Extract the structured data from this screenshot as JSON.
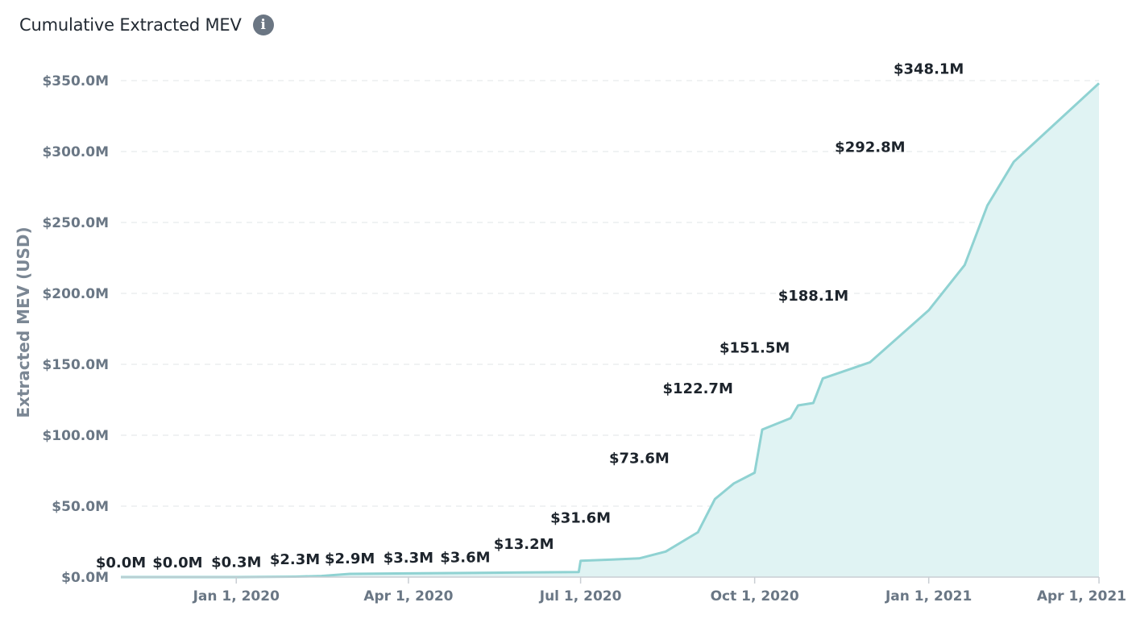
{
  "header": {
    "title": "Cumulative Extracted MEV",
    "info_icon": "info-icon"
  },
  "chart_data": {
    "type": "area",
    "title": "Cumulative Extracted MEV",
    "ylabel": "Extracted MEV (USD)",
    "xlabel": "",
    "ylim": [
      0,
      350
    ],
    "y_unit": "millions USD",
    "yticks": [
      0,
      50,
      100,
      150,
      200,
      250,
      300,
      350
    ],
    "ytick_labels": [
      "$0.0M",
      "$50.0M",
      "$100.0M",
      "$150.0M",
      "$200.0M",
      "$250.0M",
      "$300.0M",
      "$350.0M"
    ],
    "xlim": [
      "2019-11-01",
      "2021-04-01"
    ],
    "xticks": [
      "2020-01-01",
      "2020-04-01",
      "2020-07-01",
      "2020-10-01",
      "2021-01-01",
      "2021-04-01"
    ],
    "xtick_labels": [
      "Jan 1, 2020",
      "Apr 1, 2020",
      "Jul 1, 2020",
      "Oct 1, 2020",
      "Jan 1, 2021",
      "Apr 1, 2021"
    ],
    "grid": true,
    "series": [
      {
        "color": "#8fd2d2",
        "fill": "#e0f3f3",
        "points": [
          {
            "x": "2019-11-01",
            "y": 0.0
          },
          {
            "x": "2020-01-01",
            "y": 0.0
          },
          {
            "x": "2020-02-01",
            "y": 0.3
          },
          {
            "x": "2020-02-15",
            "y": 0.8
          },
          {
            "x": "2020-03-01",
            "y": 2.3
          },
          {
            "x": "2020-04-01",
            "y": 2.6
          },
          {
            "x": "2020-05-01",
            "y": 2.9
          },
          {
            "x": "2020-06-01",
            "y": 3.3
          },
          {
            "x": "2020-06-30",
            "y": 3.6
          },
          {
            "x": "2020-07-01",
            "y": 11.5
          },
          {
            "x": "2020-07-20",
            "y": 12.5
          },
          {
            "x": "2020-08-01",
            "y": 13.2
          },
          {
            "x": "2020-08-15",
            "y": 18.0
          },
          {
            "x": "2020-09-01",
            "y": 31.6
          },
          {
            "x": "2020-09-10",
            "y": 55.0
          },
          {
            "x": "2020-09-20",
            "y": 66.0
          },
          {
            "x": "2020-10-01",
            "y": 73.6
          },
          {
            "x": "2020-10-05",
            "y": 104.0
          },
          {
            "x": "2020-10-20",
            "y": 112.0
          },
          {
            "x": "2020-10-24",
            "y": 121.0
          },
          {
            "x": "2020-11-01",
            "y": 122.7
          },
          {
            "x": "2020-11-06",
            "y": 140.0
          },
          {
            "x": "2020-12-01",
            "y": 151.5
          },
          {
            "x": "2021-01-01",
            "y": 188.1
          },
          {
            "x": "2021-01-20",
            "y": 220.0
          },
          {
            "x": "2021-02-01",
            "y": 262.0
          },
          {
            "x": "2021-02-15",
            "y": 292.8
          },
          {
            "x": "2021-03-01",
            "y": 310.0
          },
          {
            "x": "2021-04-01",
            "y": 348.1
          }
        ]
      }
    ],
    "annotations": [
      {
        "x": "2019-11-01",
        "y": 0.0,
        "label": "$0.0M"
      },
      {
        "x": "2019-12-01",
        "y": 0.0,
        "label": "$0.0M"
      },
      {
        "x": "2020-01-01",
        "y": 0.3,
        "label": "$0.3M"
      },
      {
        "x": "2020-02-01",
        "y": 2.3,
        "label": "$2.3M"
      },
      {
        "x": "2020-03-01",
        "y": 2.9,
        "label": "$2.9M"
      },
      {
        "x": "2020-04-01",
        "y": 3.3,
        "label": "$3.3M"
      },
      {
        "x": "2020-05-01",
        "y": 3.6,
        "label": "$3.6M"
      },
      {
        "x": "2020-06-01",
        "y": 13.2,
        "label": "$13.2M"
      },
      {
        "x": "2020-07-01",
        "y": 31.6,
        "label": "$31.6M"
      },
      {
        "x": "2020-08-01",
        "y": 73.6,
        "label": "$73.6M"
      },
      {
        "x": "2020-09-01",
        "y": 122.7,
        "label": "$122.7M"
      },
      {
        "x": "2020-10-01",
        "y": 151.5,
        "label": "$151.5M"
      },
      {
        "x": "2020-11-01",
        "y": 188.1,
        "label": "$188.1M"
      },
      {
        "x": "2020-12-01",
        "y": 292.8,
        "label": "$292.8M"
      },
      {
        "x": "2021-01-01",
        "y": 348.1,
        "label": "$348.1M"
      }
    ]
  }
}
